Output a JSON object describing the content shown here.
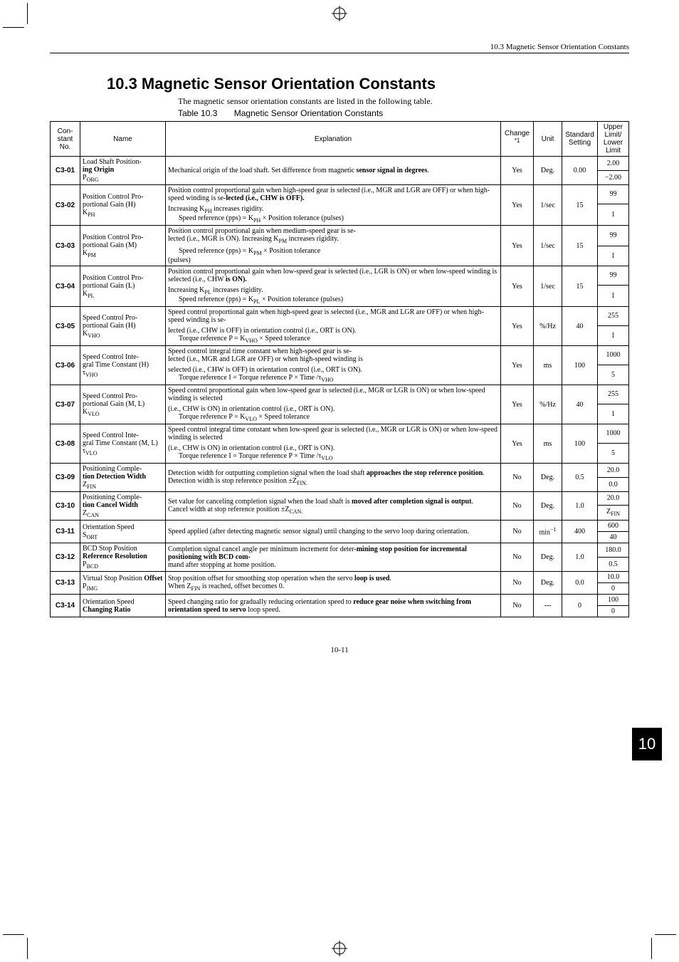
{
  "header": {
    "section": "10.3  Magnetic Sensor Orientation Constants"
  },
  "title": "10.3  Magnetic Sensor Orientation Constants",
  "intro": "The magnetic sensor orientation constants are listed in the following table.",
  "table_caption_label": "Table 10.3",
  "table_caption_text": "Magnetic Sensor Orientation Constants",
  "columns": {
    "no": "Constant No.",
    "name": "Name",
    "exp": "Explanation",
    "chg": "Change",
    "chg_sup": "*1",
    "unit": "Unit",
    "std": "Standard Setting",
    "lim": "Upper Limit/ Lower Limit"
  },
  "rows": [
    {
      "no": "C3-01",
      "name_html": "Load Shaft Position-<br><b>ing Origin</b><br>P<sub>ORG</sub>",
      "exp_html": "Mechanical origin of the load shaft. Set difference from magnetic <b>sensor signal in degrees</b>.",
      "chg": "Yes",
      "unit": "Deg.",
      "std": "0.00",
      "upper": "2.00",
      "lower": "−2.00"
    },
    {
      "no": "C3-02",
      "name_html": "Position Control Pro-<br>portional Gain (H)<br>K<sub>PH</sub>",
      "exp_top_html": "Position control proportional gain when high-speed gear is selected (i.e., MGR and LGR are OFF) or when high-speed winding is se-<b>lected (i.e., CHW is OFF).</b>",
      "exp_bot_html": "Increasing K<sub>PH</sub> increases rigidity.<br>&nbsp;&nbsp;&nbsp;&nbsp;&nbsp;&nbsp;Speed reference (pps) = K<sub>PH</sub> × Position tolerance (pulses)",
      "chg": "Yes",
      "unit": "1/sec",
      "std": "15",
      "upper": "99",
      "lower": "1"
    },
    {
      "no": "C3-03",
      "name_html": "Position Control Pro-<br>portional Gain (M)<br>K<sub>PM</sub>",
      "exp_top_html": "Position control proportional gain when medium-speed gear is se-<br>lected (i.e., MGR is ON). Increasing K<sub>PM</sub> increases rigidity.",
      "exp_bot_html": "&nbsp;&nbsp;&nbsp;&nbsp;&nbsp;&nbsp;Speed reference (pps) = K<sub>PM</sub> × Position tolerance<br>(pulses)",
      "chg": "Yes",
      "unit": "1/sec",
      "std": "15",
      "upper": "99",
      "lower": "1"
    },
    {
      "no": "C3-04",
      "name_html": "Position Control Pro-<br>portional Gain (L)<br>K<sub>PL</sub>",
      "exp_top_html": "Position control proportional gain when low-speed gear is selected (i.e., LGR is ON) or when low-speed winding is selected (i.e., CHW <b>is ON).</b>",
      "exp_bot_html": "Increasing K<sub>PL</sub> increases rigidity.<br>&nbsp;&nbsp;&nbsp;&nbsp;&nbsp;&nbsp;Speed reference (pps) = K<sub>PL</sub> × Position tolerance (pulses)",
      "chg": "Yes",
      "unit": "1/sec",
      "std": "15",
      "upper": "99",
      "lower": "1"
    },
    {
      "no": "C3-05",
      "name_html": "Speed Control Pro-<br>portional Gain (H)<br>K<sub>VHO</sub>",
      "exp_top_html": "Speed control proportional gain when high-speed gear is selected (i.e., MGR and LGR are OFF) or when high-speed winding is se-",
      "exp_bot_html": "lected (i.e., CHW is OFF) in orientation control (i.e., ORT is ON).<br>&nbsp;&nbsp;&nbsp;&nbsp;&nbsp;&nbsp;Torque reference P = K<sub>VHO</sub> × Speed tolerance",
      "chg": "Yes",
      "unit": "%/Hz",
      "std": "40",
      "upper": "255",
      "lower": "1"
    },
    {
      "no": "C3-06",
      "name_html": "Speed Control Inte-<br>gral Time Constant (H)<br>τ<sub>VHO</sub>",
      "exp_top_html": "Speed control integral time constant when high-speed gear is se-<br>lected (i.e., MGR and LGR are OFF) or when high-speed winding is",
      "exp_bot_html": "selected (i.e., CHW is OFF) in orientation control (i.e., ORT is ON).<br>&nbsp;&nbsp;&nbsp;&nbsp;&nbsp;&nbsp;Torque reference I = Torque reference P × Time /τ<sub>VHO</sub>",
      "chg": "Yes",
      "unit": "ms",
      "std": "100",
      "upper": "1000",
      "lower": "5"
    },
    {
      "no": "C3-07",
      "name_html": "Speed Control Pro-<br>portional Gain (M, L)<br>K<sub>VLO</sub>",
      "exp_top_html": "Speed control proportional gain when low-speed gear is selected (i.e., MGR or LGR is ON) or when low-speed winding is selected",
      "exp_bot_html": "(i.e., CHW is ON) in orientation control (i.e., ORT is ON).<br>&nbsp;&nbsp;&nbsp;&nbsp;&nbsp;&nbsp;Torque reference P = K<sub>VLO</sub> × Speed tolerance",
      "chg": "Yes",
      "unit": "%/Hz",
      "std": "40",
      "upper": "255",
      "lower": "1"
    },
    {
      "no": "C3-08",
      "name_html": "Speed Control Inte-<br>gral Time Constant (M, L)<br>τ<sub>VLO</sub>",
      "exp_top_html": "Speed control integral time constant when low-speed gear is selected (i.e., MGR or LGR is ON) or when low-speed winding is selected",
      "exp_bot_html": "(i.e., CHW is ON) in orientation control (i.e., ORT is ON).<br>&nbsp;&nbsp;&nbsp;&nbsp;&nbsp;&nbsp;Torque reference I = Torque reference P × Time /τ<sub>VLO</sub>",
      "chg": "Yes",
      "unit": "ms",
      "std": "100",
      "upper": "1000",
      "lower": "5"
    },
    {
      "no": "C3-09",
      "name_html": "Positioning Comple-<br><b>tion Detection Width</b><br>Z<sub>FIN</sub>",
      "exp_html": "Detection width for outputting completion signal when the load shaft <b>approaches the stop reference position</b>.<br>Detection width is stop reference position ±Z<sub>FIN.</sub>",
      "chg": "No",
      "unit": "Deg.",
      "std": "0.5",
      "upper": "20.0",
      "lower": "0.0"
    },
    {
      "no": "C3-10",
      "name_html": "Positioning Comple-<br><b>tion Cancel Width</b><br>Z<sub>CAN</sub>",
      "exp_html": "Set value for canceling completion signal when the load shaft is <b>moved after completion signal is output</b>.<br>Cancel width at stop reference position ±Z<sub>CAN.</sub>",
      "chg": "No",
      "unit": "Deg.",
      "std": "1.0",
      "upper": "20.0",
      "lower_html": "Z<sub>FIN</sub>"
    },
    {
      "no": "C3-11",
      "name_html": "Orientation Speed<br>S<sub>ORT</sub>",
      "exp_html": "Speed applied (after detecting magnetic sensor signal) until changing to the servo loop during orientation.",
      "chg": "No",
      "unit_html": "min<sup>−1</sup>",
      "std": "400",
      "upper": "600",
      "lower": "40"
    },
    {
      "no": "C3-12",
      "name_html": "BCD Stop Position<br><b>Reference Resolution</b><br>P<sub>BCD</sub>",
      "exp_html": "Completion signal cancel angle per minimum increment for deter-<b>mining stop position for incremental positioning with BCD com-</b><br>mand after stopping at home position.",
      "chg": "No",
      "unit": "Deg.",
      "std": "1.0",
      "upper": "180.0",
      "lower": "0.5"
    },
    {
      "no": "C3-13",
      "name_html": "Virtual Stop Position <b>Offset</b><br>P<sub>IMG</sub>",
      "exp_html": "Stop position offset for smoothing stop operation when the servo <b>loop is used</b>.<br>When Z<sub>FIN</sub> is reached, offset becomes 0.",
      "chg": "No",
      "unit": "Deg.",
      "std": "0.0",
      "upper": "10.0",
      "lower": "0"
    },
    {
      "no": "C3-14",
      "name_html": "Orientation Speed <b>Changing Ratio</b>",
      "exp_html": "Speed changing ratio for gradually reducing orientation speed to <b>reduce gear noise when switching from orientation speed to servo</b> loop speed.",
      "chg": "No",
      "unit": "---",
      "std": "0",
      "upper": "100",
      "lower": "0"
    }
  ],
  "side_tab": "10",
  "page_number": "10-11"
}
